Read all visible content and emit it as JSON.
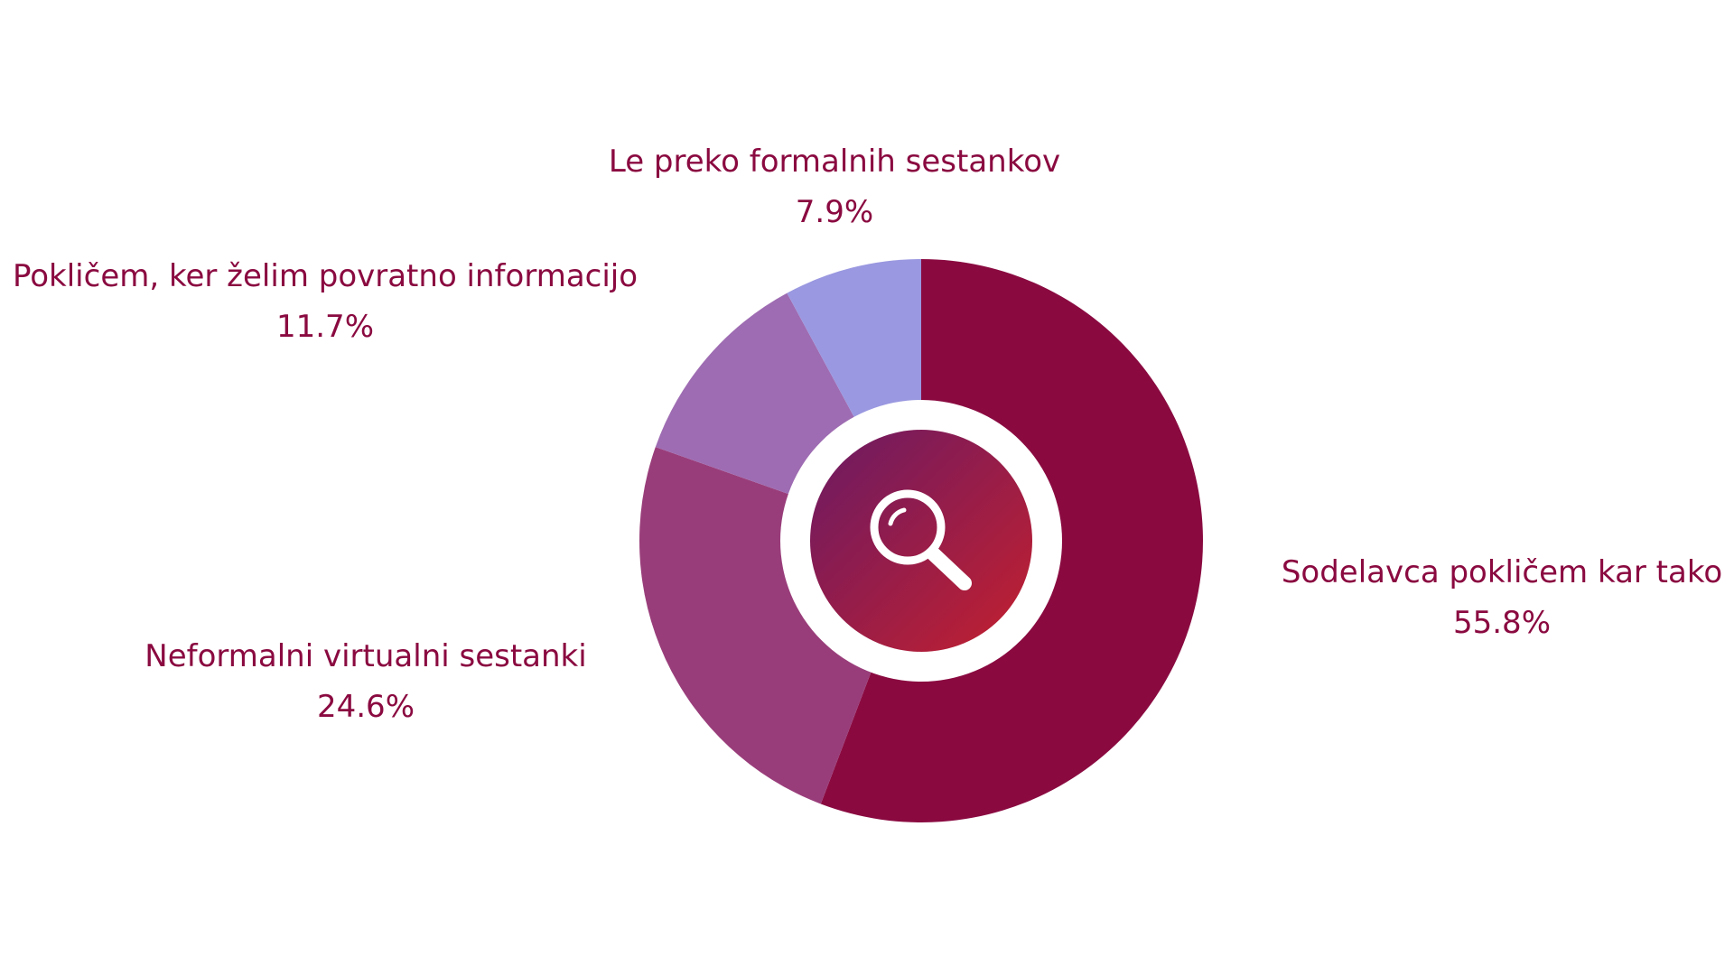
{
  "chart_data": {
    "type": "pie",
    "variant": "donut",
    "slices": [
      {
        "label": "Sodelavca pokličem kar tako",
        "value": 55.8,
        "display": "55.8%",
        "color": "#8a0a40"
      },
      {
        "label": "Neformalni virtualni sestanki",
        "value": 24.6,
        "display": "24.6%",
        "color": "#993d7a"
      },
      {
        "label": "Pokličem, ker želim povratno informacijo",
        "value": 11.7,
        "display": "11.7%",
        "color": "#9e6cb2"
      },
      {
        "label": "Le preko formalnih sestankov",
        "value": 7.9,
        "display": "7.9%",
        "color": "#9a98e0"
      }
    ],
    "center_icon": "search-icon",
    "center_gradient": [
      "#6a1a64",
      "#c4202e"
    ],
    "label_color": "#8a0a40",
    "start": "12 o'clock",
    "direction": "clockwise"
  }
}
